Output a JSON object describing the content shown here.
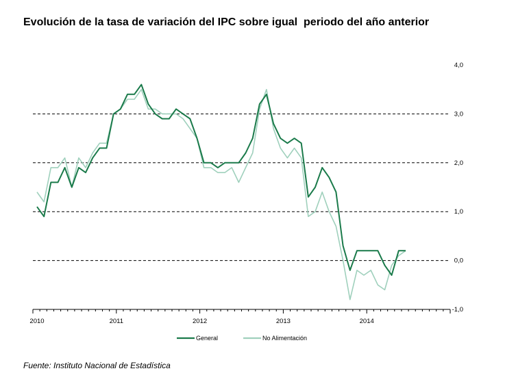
{
  "title": "Evolución de la tasa de variación del IPC sobre igual  periodo del año anterior",
  "source": "Fuente: Instituto Nacional de Estadística",
  "colors": {
    "general": "#1a7a4a",
    "no_alimentacion": "#9fd0bc",
    "grid": "#000000"
  },
  "chart_data": {
    "type": "line",
    "title": "Evolución de la tasa de variación del IPC sobre igual  periodo del año anterior",
    "xlabel": "",
    "ylabel": "",
    "x_tick_labels": [
      "2010",
      "2011",
      "2012",
      "2013",
      "2014"
    ],
    "y_tick_labels": [
      "4,0",
      "3,0",
      "2,0",
      "1,0",
      "0,0",
      "-1,0"
    ],
    "y_ticks": [
      4,
      3,
      2,
      1,
      0,
      -1
    ],
    "ylim": [
      -1,
      4
    ],
    "grid_values": [
      3,
      2,
      1,
      0
    ],
    "grid": "dashed horizontal",
    "y_axis_side": "right",
    "legend_position": "bottom-center",
    "x_start": "2010-01",
    "x_period": "month",
    "x_months_total": 60,
    "series": [
      {
        "name": "General",
        "values": [
          1.1,
          0.9,
          1.6,
          1.6,
          1.9,
          1.5,
          1.9,
          1.8,
          2.1,
          2.3,
          2.3,
          3.0,
          3.1,
          3.4,
          3.4,
          3.6,
          3.2,
          3.0,
          2.9,
          2.9,
          3.1,
          3.0,
          2.9,
          2.5,
          2.0,
          2.0,
          1.9,
          2.0,
          2.0,
          2.0,
          2.2,
          2.5,
          3.2,
          3.4,
          2.8,
          2.5,
          2.4,
          2.5,
          2.4,
          1.3,
          1.5,
          1.9,
          1.7,
          1.4,
          0.3,
          -0.2,
          0.2,
          0.2,
          0.2,
          0.2,
          -0.1,
          -0.3,
          0.2,
          0.2
        ]
      },
      {
        "name": "No Alimentación",
        "values": [
          1.4,
          1.2,
          1.9,
          1.9,
          2.1,
          1.5,
          2.1,
          1.9,
          2.2,
          2.4,
          2.4,
          3.0,
          3.1,
          3.3,
          3.3,
          3.5,
          3.1,
          3.1,
          3.0,
          3.0,
          3.0,
          2.9,
          2.7,
          2.5,
          1.9,
          1.9,
          1.8,
          1.8,
          1.9,
          1.6,
          1.9,
          2.2,
          3.1,
          3.5,
          2.7,
          2.3,
          2.1,
          2.3,
          2.1,
          0.9,
          1.0,
          1.4,
          1.0,
          0.7,
          0.0,
          -0.8,
          -0.2,
          -0.3,
          -0.2,
          -0.5,
          -0.6,
          -0.1,
          0.1,
          0.2
        ]
      }
    ]
  }
}
